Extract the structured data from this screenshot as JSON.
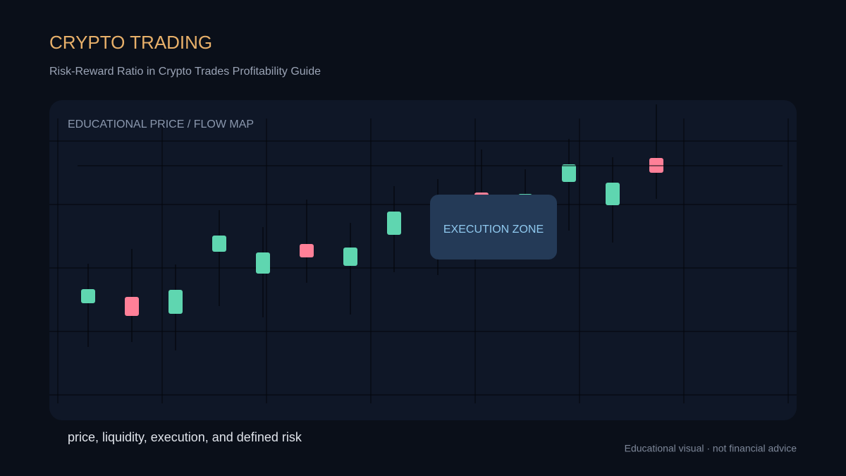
{
  "header": {
    "title": "CRYPTO TRADING",
    "subtitle": "Risk-Reward Ratio in Crypto Trades Profitability Guide"
  },
  "panel": {
    "label": "EDUCATIONAL PRICE / FLOW MAP",
    "zone": "EXECUTION ZONE"
  },
  "footer": {
    "caption": "price, liquidity, execution, and defined risk",
    "disclaimer": "Educational visual · not financial advice"
  }
}
